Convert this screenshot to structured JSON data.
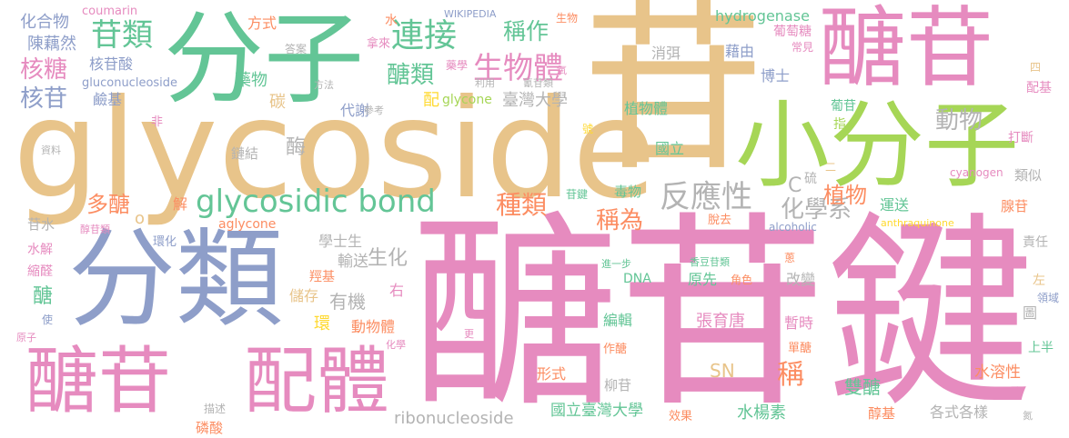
{
  "words": {
    "w_glycoside": "glycoside",
    "w_tang_gan_jian": "醣苷鍵",
    "w_gan": "苷",
    "w_fenzi": "分子",
    "w_fenlei": "分類",
    "w_xiaofenzi": "小分子",
    "w_tanggan_top": "醣苷",
    "w_tanggan_bottom": "醣苷",
    "w_peiti": "配體",
    "w_glycosidic_bond": "glycosidic bond",
    "w_lianjie": "連接",
    "w_ganlei": "苷類",
    "w_shengwuti": "生物體",
    "w_hetang": "核糖",
    "w_hegan": "核苷",
    "w_tanglei": "醣類",
    "w_chengzuo": "稱作",
    "w_dongwu": "動物",
    "w_fanyingxing": "反應性",
    "w_zhonglei": "種類",
    "w_chengwei": "稱為",
    "w_duotang": "多醣",
    "w_huaxuexi": "化學系",
    "w_zhiwu": "植物",
    "w_huahewu": "化合物",
    "w_chen": "陳藕然",
    "w_heganshuan": "核苷酸",
    "w_gluconucleoside": "gluconucleoside",
    "w_jianji": "鹼基",
    "w_yaowu": "藥物",
    "w_tan": "碳",
    "w_daixie": "代謝",
    "w_mei": "酶",
    "w_peiji": "配",
    "w_glycone": "glycone",
    "w_taiwan_univ": "臺灣大學",
    "w_zhiwuti": "植物體",
    "w_guoli": "國立",
    "w_boshi": "博士",
    "w_jieyou": "藉由",
    "w_xiaomi": "消弭",
    "w_putao": "葡萄糖",
    "w_hydrogenase": "hydrogenase",
    "w_coumarin": "coumarin",
    "w_wikipedia": "WIKIPEDIA",
    "w_fangshi": "方式",
    "w_shui": "水",
    "w_shengwu": "生物",
    "w_daan": "答案",
    "w_nalai": "拿來",
    "w_yaoxue": "藥學",
    "w_qi": "氧",
    "w_qinggan": "氰苷類",
    "w_liyong": "利用",
    "w_fangfa": "方法",
    "w_cankao": "參考",
    "w_fei": "非",
    "w_ziliao": "資料",
    "w_jianjie": "鏈結",
    "w_hao": "號",
    "w_aglycone": "aglycone",
    "w_jie": "解",
    "w_ganshui": "苷水",
    "w_chungan": "醇苷類",
    "w_shuijie": "水解",
    "w_huanhua": "環化",
    "w_suoquan": "縮醛",
    "w_tang2": "醣",
    "w_shi": "使",
    "w_yuanzi": "原子",
    "w_shushung": "輸送",
    "w_shenghua": "生化",
    "w_xueshisheng": "學士生",
    "w_qiangji": "羥基",
    "w_chucun": "儲存",
    "w_youji": "有機",
    "w_you": "右",
    "w_huan": "環",
    "w_dongwuti": "動物體",
    "w_huaxue": "化學",
    "w_miaoshu": "描述",
    "w_linsuan": "磷酸",
    "w_ribonucleoside": "ribonucleoside",
    "w_guoli_taida": "國立臺灣大學",
    "w_xingshi": "形式",
    "w_bianji": "編輯",
    "w_zhang": "張育唐",
    "w_yuanxian": "原先",
    "w_juese": "角色",
    "w_dna": "DNA",
    "w_jinyibu": "進一步",
    "w_gaibian": "改變",
    "w_xiangdou": "香豆苷類",
    "w_zuotang": "作醣",
    "w_liugan": "柳苷",
    "w_geng": "更",
    "w_xiaoguo": "效果",
    "w_shuiyang": "水楊素",
    "w_shuangtang": "雙醣",
    "w_SN": "SN",
    "w_cheng": "稱",
    "w_zanshi": "暫時",
    "w_dantang": "單醣",
    "w_chunji": "醇基",
    "w_gesh": "各式各樣",
    "w_shuirong": "水溶性",
    "w_tu": "圖",
    "w_zuo": "左",
    "w_zeren": "責任",
    "w_xiangan": "腺苷",
    "w_yunsong": "運送",
    "w_dazhuan": "打斷",
    "w_leisi": "類似",
    "w_cyanogen": "cyanogen",
    "w_liu": "硫",
    "w_er": "二",
    "w_zhi": "指",
    "w_putaogan": "葡苷",
    "w_changjian": "常見",
    "w_si": "四",
    "w_peiji2": "配基",
    "w_C": "C",
    "w_alcoholic": "alcoholic",
    "w_anthraquinone": "anthraquinone",
    "w_tuoqu": "脫去",
    "w_dujwu": "毒物",
    "w_ganjian": "苷鍵",
    "w_cong": "蔥",
    "w_lingyu": "領域",
    "w_shangban": "上半",
    "w_dan": "氮"
  }
}
